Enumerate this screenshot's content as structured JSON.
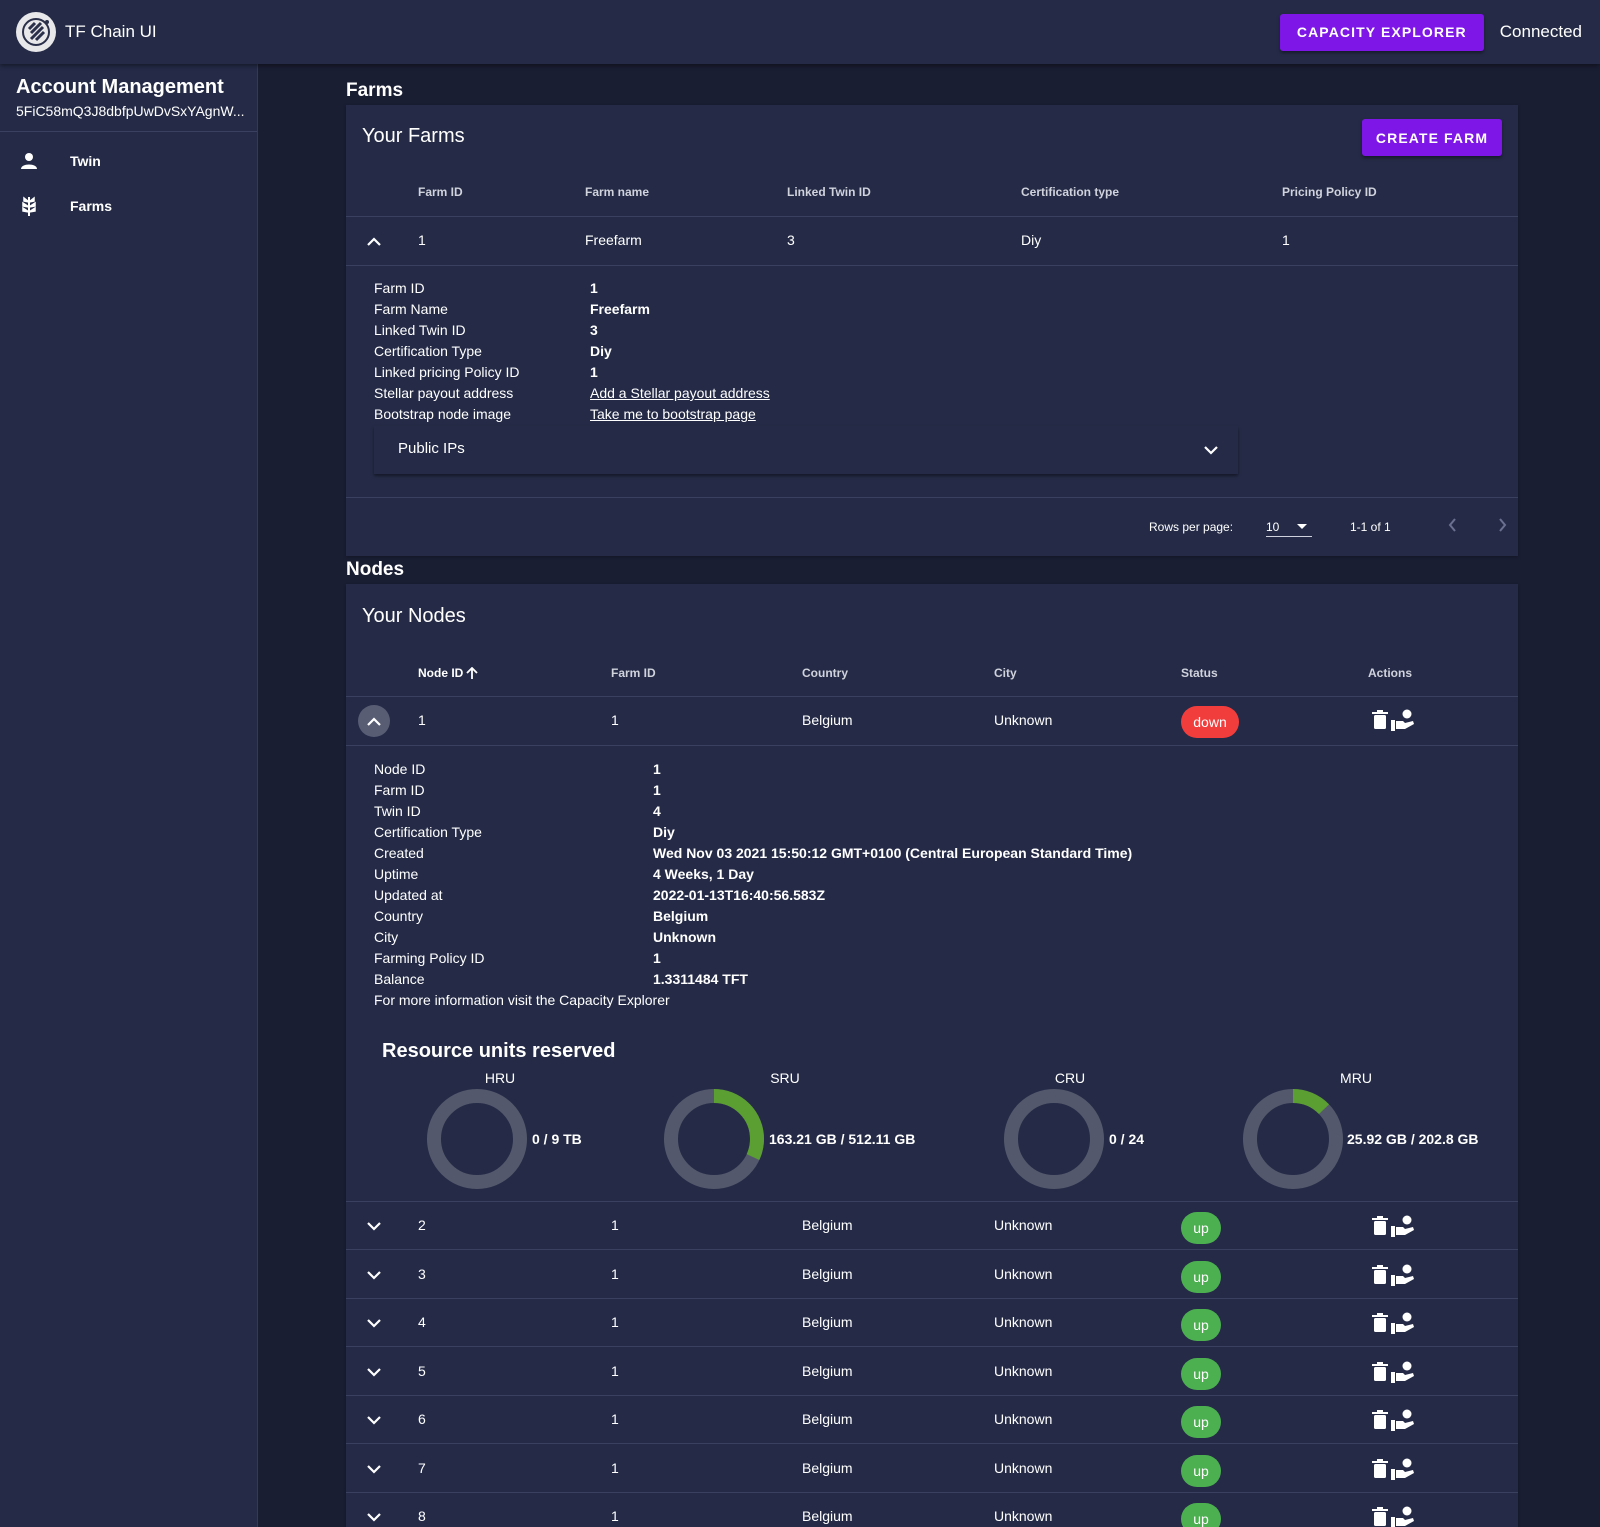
{
  "app": {
    "title": "TF Chain UI",
    "capacity_button": "CAPACITY EXPLORER",
    "status": "Connected"
  },
  "sidebar": {
    "title": "Account Management",
    "address": "5FiC58mQ3J8dbfpUwDvSxYAgnW...",
    "items": [
      {
        "label": "Twin",
        "icon": "person-icon"
      },
      {
        "label": "Farms",
        "icon": "wheat-icon"
      }
    ]
  },
  "farms": {
    "section_title": "Farms",
    "card_title": "Your Farms",
    "create_button": "CREATE FARM",
    "headers": [
      "Farm ID",
      "Farm name",
      "Linked Twin ID",
      "Certification type",
      "Pricing Policy ID"
    ],
    "rows": [
      {
        "farm_id": "1",
        "name": "Freefarm",
        "twin_id": "3",
        "cert": "Diy",
        "pricing": "1"
      }
    ],
    "details": {
      "labels": [
        "Farm ID",
        "Farm Name",
        "Linked Twin ID",
        "Certification Type",
        "Linked pricing Policy ID",
        "Stellar payout address",
        "Bootstrap node image"
      ],
      "values": [
        "1",
        "Freefarm",
        "3",
        "Diy",
        "1"
      ],
      "stellar_link": "Add a Stellar payout address",
      "bootstrap_link": "Take me to bootstrap page"
    },
    "public_ips": "Public IPs",
    "footer": {
      "rows_per_page_label": "Rows per page:",
      "rows_per_page": "10",
      "range": "1-1 of 1"
    }
  },
  "nodes": {
    "section_title": "Nodes",
    "card_title": "Your Nodes",
    "headers": [
      "Node ID",
      "Farm ID",
      "Country",
      "City",
      "Status",
      "Actions"
    ],
    "sort_icon": "arrow-up-icon",
    "expanded_row": {
      "node_id": "1",
      "farm_id": "1",
      "country": "Belgium",
      "city": "Unknown",
      "status": "down"
    },
    "details": {
      "labels": [
        "Node ID",
        "Farm ID",
        "Twin ID",
        "Certification Type",
        "Created",
        "Uptime",
        "Updated at",
        "Country",
        "City",
        "Farming Policy ID",
        "Balance"
      ],
      "values": [
        "1",
        "1",
        "4",
        "Diy",
        "Wed Nov 03 2021 15:50:12 GMT+0100 (Central European Standard Time)",
        "4 Weeks, 1 Day",
        "2022-01-13T16:40:56.583Z",
        "Belgium",
        "Unknown",
        "1",
        "1.3311484 TFT"
      ],
      "more_info": "For more information visit the Capacity Explorer"
    },
    "resources": {
      "title": "Resource units reserved",
      "units": [
        {
          "label": "HRU",
          "text": "0 / 9 TB",
          "fraction": 0
        },
        {
          "label": "SRU",
          "text": "163.21 GB / 512.11 GB",
          "fraction": 0.3187
        },
        {
          "label": "CRU",
          "text": "0 / 24",
          "fraction": 0
        },
        {
          "label": "MRU",
          "text": "25.92 GB / 202.8 GB",
          "fraction": 0.1278
        }
      ],
      "track_color": "#54586c",
      "fill_color": "#5b9e31"
    },
    "rows": [
      {
        "node_id": "2",
        "farm_id": "1",
        "country": "Belgium",
        "city": "Unknown",
        "status": "up"
      },
      {
        "node_id": "3",
        "farm_id": "1",
        "country": "Belgium",
        "city": "Unknown",
        "status": "up"
      },
      {
        "node_id": "4",
        "farm_id": "1",
        "country": "Belgium",
        "city": "Unknown",
        "status": "up"
      },
      {
        "node_id": "5",
        "farm_id": "1",
        "country": "Belgium",
        "city": "Unknown",
        "status": "up"
      },
      {
        "node_id": "6",
        "farm_id": "1",
        "country": "Belgium",
        "city": "Unknown",
        "status": "up"
      },
      {
        "node_id": "7",
        "farm_id": "1",
        "country": "Belgium",
        "city": "Unknown",
        "status": "up"
      },
      {
        "node_id": "8",
        "farm_id": "1",
        "country": "Belgium",
        "city": "Unknown",
        "status": "up"
      }
    ]
  },
  "colors": {
    "accent": "#7e16e8",
    "down": "#f23d3d",
    "up": "#4caf50",
    "background": "#1a1e33",
    "surface": "#252b47"
  }
}
